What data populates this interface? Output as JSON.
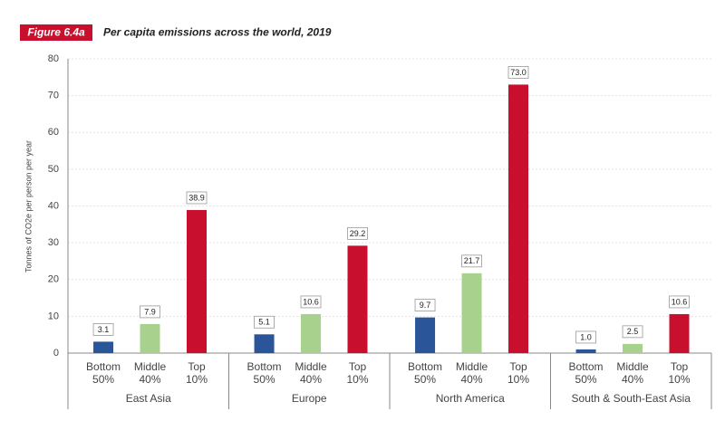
{
  "chart_data": {
    "type": "bar",
    "figure_label": "Figure 6.4a",
    "title": "Per capita emissions across the world, 2019",
    "y_label": "Tonnes of CO2e per person per year",
    "categories": [
      "East Asia",
      "Europe",
      "North America",
      "South & South-East Asia"
    ],
    "series": [
      {
        "name": "Bottom 50%",
        "color": "#2a5599",
        "values": [
          3.1,
          5.1,
          9.7,
          1.0
        ],
        "value_labels": [
          "3.1",
          "5.1",
          "9.7",
          "1.0"
        ]
      },
      {
        "name": "Middle 40%",
        "color": "#a9d18e",
        "values": [
          7.9,
          10.6,
          21.7,
          2.5
        ],
        "value_labels": [
          "7.9",
          "10.6",
          "21.7",
          "2.5"
        ]
      },
      {
        "name": "Top 10%",
        "color": "#c8102e",
        "values": [
          38.9,
          29.2,
          73.0,
          10.6
        ],
        "value_labels": [
          "38.9",
          "29.2",
          "73.0",
          "10.6"
        ]
      }
    ],
    "ylim": [
      0,
      80
    ],
    "yticks": [
      0,
      10,
      20,
      30,
      40,
      50,
      60,
      70,
      80
    ],
    "grid": true
  }
}
